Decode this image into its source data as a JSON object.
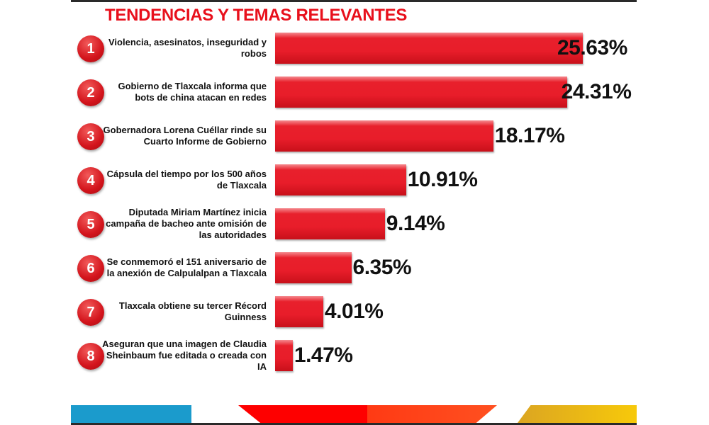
{
  "chart_data": {
    "type": "bar",
    "orientation": "horizontal",
    "title": "TENDENCIAS Y TEMAS RELEVANTES",
    "ranks": [
      "1",
      "2",
      "3",
      "4",
      "5",
      "6",
      "7",
      "8"
    ],
    "categories": [
      "Violencia, asesinatos, inseguridad y robos",
      "Gobierno de Tlaxcala informa que bots de china atacan en redes",
      "Gobernadora Lorena Cuéllar rinde su Cuarto Informe de Gobierno",
      "Cápsula del tiempo por los 500 años de Tlaxcala",
      "Diputada Miriam Martínez inicia campaña de bacheo ante omisión de las autoridades",
      "Se conmemoró el 151 aniversario de la anexión de Calpulalpan a Tlaxcala",
      "Tlaxcala obtiene su tercer Récord Guinness",
      "Aseguran que una imagen de Claudia Sheinbaum fue editada o creada con IA"
    ],
    "values": [
      25.63,
      24.31,
      18.17,
      10.91,
      9.14,
      6.35,
      4.01,
      1.47
    ],
    "value_labels": [
      "25.63%",
      "24.31%",
      "18.17%",
      "10.91%",
      "9.14%",
      "6.35%",
      "4.01%",
      "1.47%"
    ],
    "unit": "%",
    "xlabel": "",
    "ylabel": "",
    "xlim": [
      0,
      30
    ],
    "grid": false,
    "legend": "none",
    "colors": {
      "bar": "#e81d2a",
      "title": "#e8101c"
    }
  },
  "footer_colors": [
    "#1b9bcc",
    "#fe0000",
    "#ff4a1a",
    "#f7c90a"
  ]
}
